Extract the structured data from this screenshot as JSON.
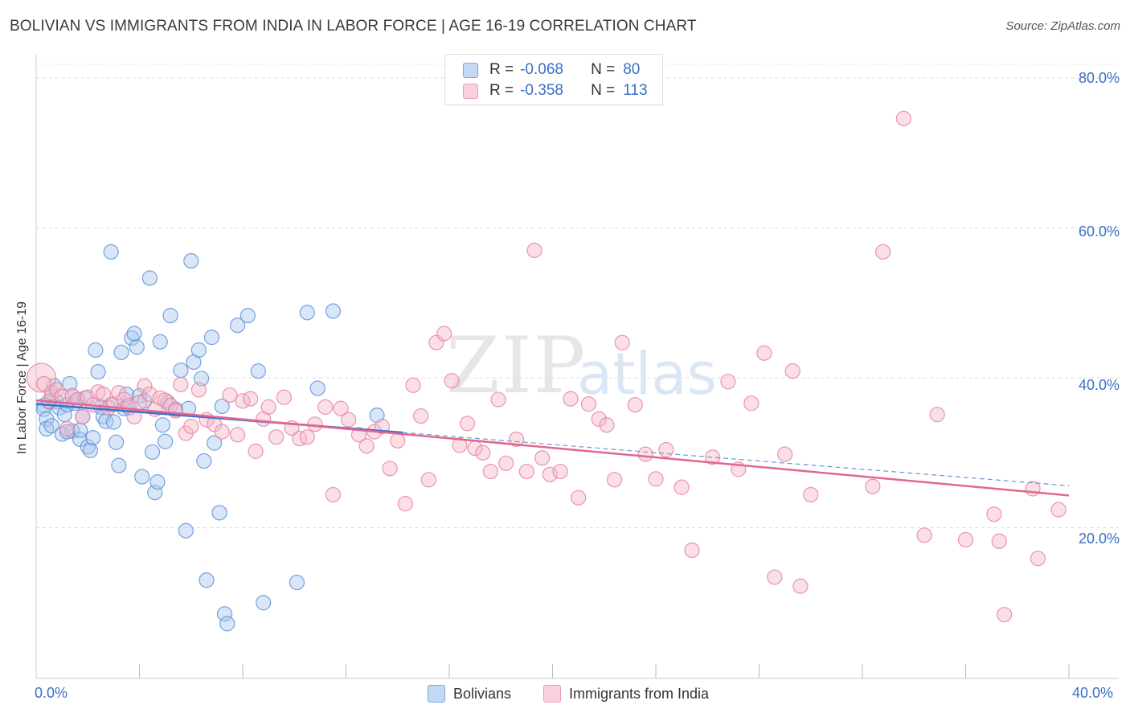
{
  "header": {
    "title": "BOLIVIAN VS IMMIGRANTS FROM INDIA IN LABOR FORCE | AGE 16-19 CORRELATION CHART",
    "source": "Source: ZipAtlas.com"
  },
  "watermark": {
    "zip": "ZIP",
    "atlas": "atlas"
  },
  "legend_top": {
    "rows": [
      {
        "r_label": "R =",
        "r_value": "-0.068",
        "n_label": "N =",
        "n_value": "80",
        "color": "#9bbfe8"
      },
      {
        "r_label": "R =",
        "r_value": "-0.358",
        "n_label": "N =",
        "n_value": "113",
        "color": "#f4b0c6"
      }
    ]
  },
  "legend_bottom": {
    "items": [
      {
        "label": "Bolivians",
        "color": "#9bbfe8"
      },
      {
        "label": "Immigrants from India",
        "color": "#f4b0c6"
      }
    ]
  },
  "chart_data": {
    "type": "scatter",
    "title": "BOLIVIAN VS IMMIGRANTS FROM INDIA IN LABOR FORCE | AGE 16-19 CORRELATION CHART",
    "ylabel": "In Labor Force | Age 16-19",
    "xlim": [
      0,
      40
    ],
    "ylim": [
      0,
      80
    ],
    "x_tick_labels": [
      "0.0%",
      "40.0%"
    ],
    "y_ticks": [
      20,
      40,
      60,
      80
    ],
    "y_tick_labels": [
      "20.0%",
      "40.0%",
      "60.0%",
      "80.0%"
    ],
    "grid": true,
    "legend_position": "top-center",
    "series": [
      {
        "name": "Bolivians",
        "color": "#5d93d8",
        "fill": "#a9c8ee",
        "trend": {
          "x": [
            0,
            14.2
          ],
          "y": [
            36.5,
            32.7
          ],
          "dashed_extension_to_x": 40,
          "dashed_end_y": 25.6
        },
        "points": [
          [
            0.3,
            36.3
          ],
          [
            0.3,
            35.8
          ],
          [
            0.4,
            34.5
          ],
          [
            0.4,
            33.2
          ],
          [
            0.6,
            33.6
          ],
          [
            0.6,
            37.5
          ],
          [
            0.7,
            38.9
          ],
          [
            0.8,
            36.8
          ],
          [
            0.9,
            36.0
          ],
          [
            1.0,
            32.5
          ],
          [
            1.1,
            35.1
          ],
          [
            1.2,
            36.4
          ],
          [
            1.3,
            39.2
          ],
          [
            1.4,
            37.6
          ],
          [
            1.4,
            32.9
          ],
          [
            1.5,
            36.6
          ],
          [
            1.6,
            37.0
          ],
          [
            1.7,
            31.8
          ],
          [
            1.7,
            33.0
          ],
          [
            1.8,
            34.8
          ],
          [
            1.9,
            37.3
          ],
          [
            2.0,
            30.8
          ],
          [
            2.1,
            30.3
          ],
          [
            2.2,
            32.0
          ],
          [
            2.3,
            43.7
          ],
          [
            2.4,
            40.8
          ],
          [
            2.5,
            36.1
          ],
          [
            2.6,
            34.8
          ],
          [
            2.7,
            34.2
          ],
          [
            2.9,
            36.4
          ],
          [
            3.0,
            34.1
          ],
          [
            3.1,
            31.4
          ],
          [
            3.2,
            28.3
          ],
          [
            3.3,
            43.4
          ],
          [
            3.4,
            35.9
          ],
          [
            3.5,
            37.8
          ],
          [
            3.6,
            36.0
          ],
          [
            3.7,
            45.3
          ],
          [
            3.8,
            45.9
          ],
          [
            3.9,
            44.1
          ],
          [
            4.0,
            37.6
          ],
          [
            4.1,
            26.8
          ],
          [
            4.2,
            36.9
          ],
          [
            4.4,
            53.3
          ],
          [
            4.5,
            30.1
          ],
          [
            4.6,
            24.7
          ],
          [
            4.7,
            26.1
          ],
          [
            4.8,
            44.8
          ],
          [
            4.9,
            33.7
          ],
          [
            5.0,
            31.5
          ],
          [
            5.1,
            36.7
          ],
          [
            5.2,
            48.3
          ],
          [
            5.4,
            35.8
          ],
          [
            5.6,
            41.0
          ],
          [
            5.8,
            19.6
          ],
          [
            5.9,
            35.9
          ],
          [
            6.0,
            55.6
          ],
          [
            6.1,
            42.1
          ],
          [
            6.3,
            43.7
          ],
          [
            6.4,
            39.9
          ],
          [
            6.5,
            28.9
          ],
          [
            6.6,
            13.0
          ],
          [
            6.8,
            45.4
          ],
          [
            6.9,
            31.3
          ],
          [
            7.1,
            22.0
          ],
          [
            7.2,
            36.2
          ],
          [
            7.3,
            8.5
          ],
          [
            7.4,
            7.2
          ],
          [
            7.8,
            47.0
          ],
          [
            8.2,
            48.3
          ],
          [
            8.6,
            40.9
          ],
          [
            8.8,
            10.0
          ],
          [
            10.1,
            12.7
          ],
          [
            10.5,
            48.7
          ],
          [
            10.9,
            38.6
          ],
          [
            11.5,
            48.9
          ],
          [
            2.9,
            56.8
          ],
          [
            0.5,
            36.8
          ],
          [
            1.2,
            32.8
          ],
          [
            13.2,
            35.0
          ]
        ]
      },
      {
        "name": "Immigrants from India",
        "color": "#e7829f",
        "fill": "#f6b8ca",
        "trend": {
          "x": [
            0,
            40
          ],
          "y": [
            37.0,
            24.3
          ]
        },
        "points": [
          [
            0.2,
            40.0
          ],
          [
            0.3,
            39.2
          ],
          [
            0.5,
            36.9
          ],
          [
            0.6,
            38.0
          ],
          [
            0.8,
            38.4
          ],
          [
            1.0,
            37.5
          ],
          [
            1.2,
            33.2
          ],
          [
            1.4,
            37.6
          ],
          [
            1.6,
            37.1
          ],
          [
            1.8,
            34.8
          ],
          [
            2.0,
            37.4
          ],
          [
            2.2,
            36.4
          ],
          [
            2.4,
            38.1
          ],
          [
            2.6,
            37.8
          ],
          [
            2.8,
            36.0
          ],
          [
            3.0,
            36.5
          ],
          [
            3.2,
            38.0
          ],
          [
            3.4,
            37.1
          ],
          [
            3.6,
            36.3
          ],
          [
            3.8,
            34.8
          ],
          [
            4.0,
            36.7
          ],
          [
            4.2,
            38.9
          ],
          [
            4.4,
            37.8
          ],
          [
            4.6,
            35.8
          ],
          [
            4.8,
            37.3
          ],
          [
            5.0,
            37.0
          ],
          [
            5.2,
            36.3
          ],
          [
            5.4,
            35.6
          ],
          [
            5.6,
            39.1
          ],
          [
            5.8,
            32.6
          ],
          [
            6.0,
            33.5
          ],
          [
            6.3,
            38.4
          ],
          [
            6.6,
            34.4
          ],
          [
            6.9,
            33.8
          ],
          [
            7.2,
            32.8
          ],
          [
            7.5,
            37.7
          ],
          [
            7.8,
            32.4
          ],
          [
            8.0,
            36.9
          ],
          [
            8.3,
            37.2
          ],
          [
            8.5,
            30.2
          ],
          [
            8.8,
            34.5
          ],
          [
            9.0,
            36.1
          ],
          [
            9.3,
            32.1
          ],
          [
            9.6,
            37.4
          ],
          [
            9.9,
            33.3
          ],
          [
            10.2,
            31.9
          ],
          [
            10.5,
            32.1
          ],
          [
            10.8,
            33.8
          ],
          [
            11.2,
            36.1
          ],
          [
            11.5,
            24.4
          ],
          [
            11.8,
            35.9
          ],
          [
            12.1,
            34.4
          ],
          [
            12.5,
            32.4
          ],
          [
            12.8,
            30.9
          ],
          [
            13.1,
            32.8
          ],
          [
            13.4,
            33.5
          ],
          [
            13.7,
            27.9
          ],
          [
            14.0,
            31.6
          ],
          [
            14.3,
            23.2
          ],
          [
            14.6,
            39.0
          ],
          [
            14.9,
            34.9
          ],
          [
            15.2,
            26.4
          ],
          [
            15.5,
            44.7
          ],
          [
            15.8,
            45.9
          ],
          [
            16.1,
            39.6
          ],
          [
            16.4,
            31.0
          ],
          [
            16.7,
            33.9
          ],
          [
            17.0,
            30.6
          ],
          [
            17.3,
            30.0
          ],
          [
            17.6,
            27.5
          ],
          [
            17.9,
            37.1
          ],
          [
            18.2,
            28.6
          ],
          [
            18.6,
            31.8
          ],
          [
            19.0,
            27.5
          ],
          [
            19.3,
            57.0
          ],
          [
            19.6,
            29.3
          ],
          [
            19.9,
            27.1
          ],
          [
            20.3,
            27.5
          ],
          [
            20.7,
            37.2
          ],
          [
            21.0,
            24.0
          ],
          [
            21.4,
            36.5
          ],
          [
            21.8,
            34.5
          ],
          [
            22.1,
            33.7
          ],
          [
            22.4,
            26.4
          ],
          [
            22.7,
            44.7
          ],
          [
            23.2,
            36.4
          ],
          [
            23.6,
            29.8
          ],
          [
            24.0,
            26.5
          ],
          [
            24.4,
            30.4
          ],
          [
            25.0,
            25.4
          ],
          [
            25.4,
            17.0
          ],
          [
            26.2,
            29.4
          ],
          [
            26.8,
            39.5
          ],
          [
            27.2,
            27.8
          ],
          [
            27.7,
            36.6
          ],
          [
            28.2,
            43.3
          ],
          [
            28.6,
            13.4
          ],
          [
            29.0,
            29.8
          ],
          [
            29.3,
            40.9
          ],
          [
            29.6,
            12.2
          ],
          [
            30.0,
            24.4
          ],
          [
            32.4,
            25.5
          ],
          [
            32.8,
            56.8
          ],
          [
            33.6,
            74.6
          ],
          [
            34.4,
            19.0
          ],
          [
            34.9,
            35.1
          ],
          [
            36.0,
            18.4
          ],
          [
            37.1,
            21.8
          ],
          [
            37.3,
            18.2
          ],
          [
            37.5,
            8.4
          ],
          [
            38.6,
            25.2
          ],
          [
            39.6,
            22.4
          ],
          [
            38.8,
            15.9
          ]
        ]
      }
    ]
  }
}
